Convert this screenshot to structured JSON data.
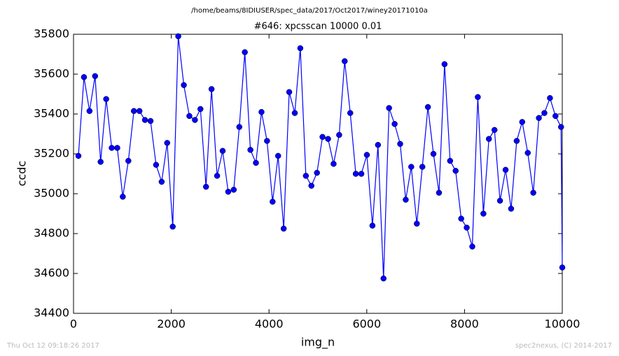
{
  "chart_data": {
    "type": "line",
    "title": "/home/beams/8IDIUSER/spec_data/2017/Oct2017/winey20171010a",
    "subtitle": "#646: xpcsscan 10000 0.01",
    "x_label": "img_n",
    "y_label": "ccdc",
    "timestamp": "Thu Oct 12 09:18:26 2017",
    "credit": "spec2nexus, (C) 2014-2017",
    "xlim": [
      0,
      10000
    ],
    "xticks": [
      0,
      2000,
      4000,
      6000,
      8000,
      10000
    ],
    "ylim": [
      34400,
      35800
    ],
    "yticks": [
      34400,
      34600,
      34800,
      35000,
      35200,
      35400,
      35600,
      35800
    ],
    "grid": false,
    "x": [
      100,
      214,
      327,
      441,
      554,
      668,
      781,
      895,
      1008,
      1122,
      1235,
      1349,
      1462,
      1576,
      1689,
      1803,
      1916,
      2030,
      2143,
      2257,
      2370,
      2484,
      2597,
      2711,
      2824,
      2938,
      3051,
      3165,
      3278,
      3392,
      3505,
      3619,
      3732,
      3846,
      3959,
      4073,
      4186,
      4300,
      4413,
      4527,
      4640,
      4754,
      4867,
      4981,
      5094,
      5208,
      5321,
      5435,
      5548,
      5662,
      5775,
      5889,
      6002,
      6116,
      6229,
      6343,
      6456,
      6570,
      6683,
      6797,
      6910,
      7024,
      7137,
      7251,
      7364,
      7478,
      7591,
      7705,
      7818,
      7932,
      8045,
      8159,
      8272,
      8386,
      8499,
      8613,
      8726,
      8840,
      8953,
      9067,
      9180,
      9294,
      9407,
      9521,
      9634,
      9748,
      9861,
      9975,
      10000
    ],
    "series": [
      {
        "color": "#0000ff",
        "values": [
          35190,
          35585,
          35415,
          35590,
          35160,
          35475,
          35230,
          35230,
          34985,
          35165,
          35415,
          35415,
          35370,
          35365,
          35145,
          35060,
          35255,
          34835,
          35790,
          35545,
          35390,
          35370,
          35425,
          35035,
          35525,
          35090,
          35215,
          35010,
          35020,
          35335,
          35710,
          35220,
          35155,
          35410,
          35265,
          34960,
          35190,
          34825,
          35510,
          35405,
          35730,
          35090,
          35040,
          35105,
          35285,
          35275,
          35150,
          35295,
          35665,
          35405,
          35100,
          35100,
          35195,
          34840,
          35245,
          34575,
          35430,
          35350,
          35250,
          34970,
          35135,
          34850,
          35135,
          35435,
          35200,
          35005,
          35650,
          35165,
          35115,
          34875,
          34830,
          34735,
          35485,
          34900,
          35275,
          35320,
          34965,
          35120,
          34925,
          35265,
          35360,
          35205,
          35005,
          35380,
          35405,
          35480,
          35390,
          35335,
          34630
        ]
      }
    ]
  }
}
